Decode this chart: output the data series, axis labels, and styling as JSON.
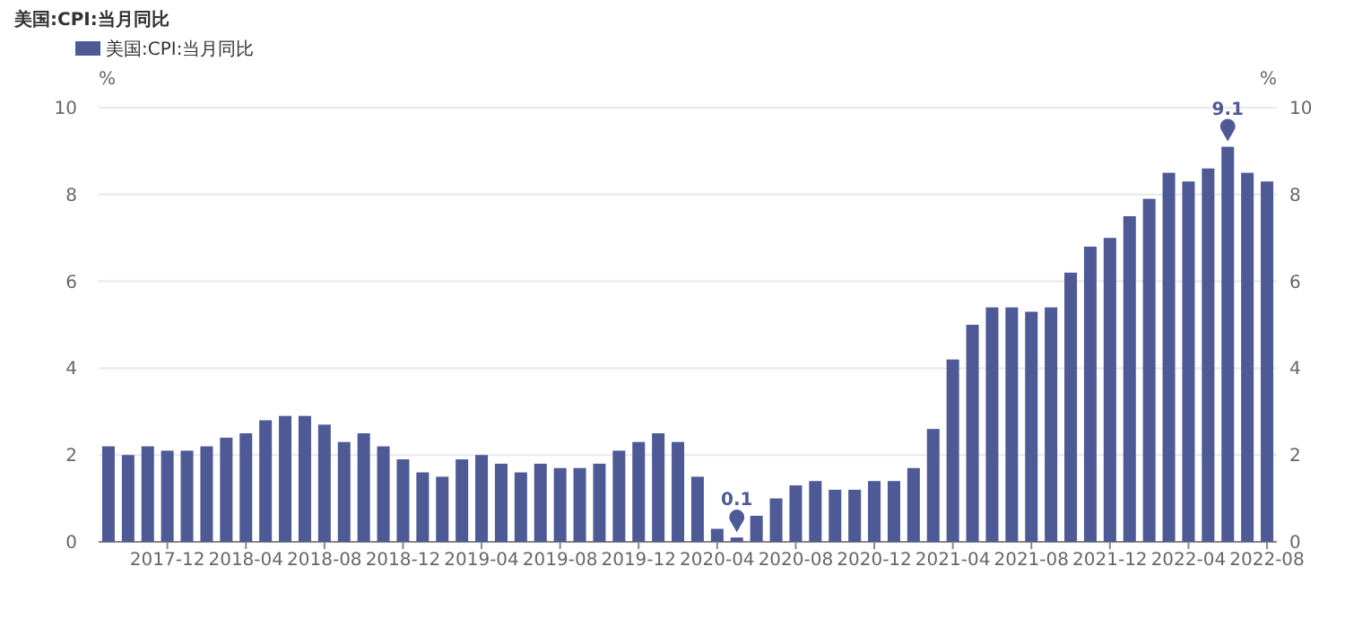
{
  "chart_data": {
    "type": "bar",
    "title": "美国:CPI:当月同比",
    "categories": [
      null,
      null,
      null,
      "2017-12",
      null,
      null,
      null,
      "2018-04",
      null,
      null,
      null,
      "2018-08",
      null,
      null,
      null,
      "2018-12",
      null,
      null,
      null,
      "2019-04",
      null,
      null,
      null,
      "2019-08",
      null,
      null,
      null,
      "2019-12",
      null,
      null,
      null,
      "2020-04",
      null,
      null,
      null,
      "2020-08",
      null,
      null,
      null,
      "2020-12",
      null,
      null,
      null,
      "2021-04",
      null,
      null,
      null,
      "2021-08",
      null,
      null,
      null,
      "2021-12",
      null,
      null,
      null,
      "2022-04",
      null,
      null,
      null,
      "2022-08"
    ],
    "series": [
      {
        "name": "美国:CPI:当月同比",
        "color": "#4e5a96",
        "values": [
          2.2,
          2.0,
          2.2,
          2.1,
          2.1,
          2.2,
          2.4,
          2.5,
          2.8,
          2.9,
          2.9,
          2.7,
          2.3,
          2.5,
          2.2,
          1.9,
          1.6,
          1.5,
          1.9,
          2.0,
          1.8,
          1.6,
          1.8,
          1.7,
          1.7,
          1.8,
          2.1,
          2.3,
          2.5,
          2.3,
          1.5,
          0.3,
          0.1,
          0.6,
          1.0,
          1.3,
          1.4,
          1.2,
          1.2,
          1.4,
          1.4,
          1.7,
          2.6,
          4.2,
          5.0,
          5.4,
          5.4,
          5.3,
          5.4,
          6.2,
          6.8,
          7.0,
          7.5,
          7.9,
          8.5,
          8.3,
          8.6,
          9.1,
          8.5,
          8.3
        ],
        "value_labels": [
          null,
          null,
          null,
          null,
          null,
          null,
          null,
          null,
          null,
          null,
          null,
          null,
          null,
          null,
          null,
          null,
          null,
          null,
          null,
          null,
          null,
          null,
          null,
          null,
          null,
          null,
          null,
          null,
          null,
          null,
          null,
          null,
          "0.1",
          null,
          null,
          null,
          null,
          null,
          null,
          null,
          null,
          null,
          null,
          null,
          null,
          null,
          null,
          null,
          null,
          null,
          null,
          null,
          null,
          null,
          null,
          null,
          null,
          "9.1",
          null,
          null
        ]
      }
    ],
    "ylabel": "%",
    "y2label": "%",
    "ylim": [
      0,
      10
    ],
    "yticks": [
      0,
      2,
      4,
      6,
      8,
      10
    ],
    "y2lim": [
      0,
      10
    ],
    "y2ticks": [
      0,
      2,
      4,
      6,
      8,
      10
    ],
    "grid": "y",
    "legend": "top left"
  }
}
